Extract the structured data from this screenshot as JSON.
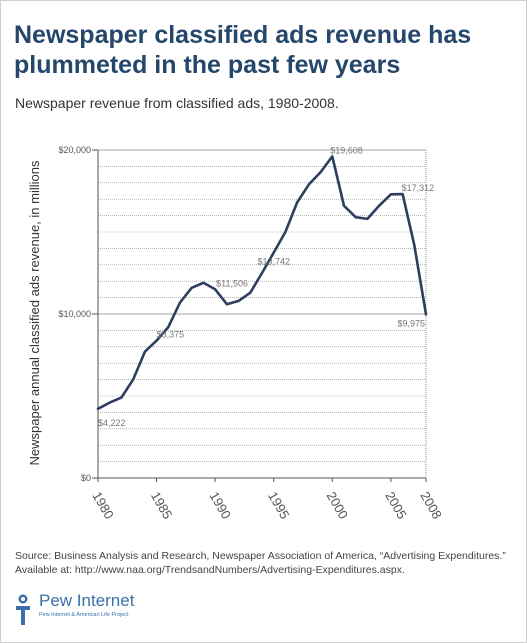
{
  "header": {
    "title_line1": "Newspaper classified ads revenue has",
    "title_line2": "plummeted in the past few years",
    "subtitle": "Newspaper revenue from classified ads, 1980-2008."
  },
  "chart_data": {
    "type": "line",
    "title": "Newspaper classified ads revenue has plummeted in the past few years",
    "subtitle": "Newspaper revenue from classified ads, 1980-2008.",
    "ylabel": "Newspaper annual classified ads revenue, in millions",
    "xlabel": "",
    "ylim": [
      0,
      20000
    ],
    "xlim": [
      1980,
      2008
    ],
    "y_ticks": [
      {
        "value": 0,
        "label": "$0"
      },
      {
        "value": 10000,
        "label": "$10,000"
      },
      {
        "value": 20000,
        "label": "$20,000"
      }
    ],
    "x_ticks": [
      {
        "value": 1980,
        "label": "1980"
      },
      {
        "value": 1985,
        "label": "1985"
      },
      {
        "value": 1990,
        "label": "1990"
      },
      {
        "value": 1995,
        "label": "1995"
      },
      {
        "value": 2000,
        "label": "2000"
      },
      {
        "value": 2005,
        "label": "2005"
      },
      {
        "value": 2008,
        "label": "2008"
      }
    ],
    "grid": "horizontal",
    "series": [
      {
        "color": "#2d3e5f",
        "x": [
          1980,
          1981,
          1982,
          1983,
          1984,
          1985,
          1986,
          1987,
          1988,
          1989,
          1990,
          1991,
          1992,
          1993,
          1994,
          1995,
          1996,
          1997,
          1998,
          1999,
          2000,
          2001,
          2002,
          2003,
          2004,
          2005,
          2006,
          2007,
          2008
        ],
        "values": [
          4222,
          4600,
          4900,
          6000,
          7700,
          8375,
          9200,
          10700,
          11600,
          11900,
          11506,
          10600,
          10800,
          11300,
          12500,
          13742,
          15000,
          16800,
          17900,
          18650,
          19608,
          16600,
          15900,
          15800,
          16600,
          17300,
          17312,
          14200,
          9975
        ]
      }
    ],
    "annotations": [
      {
        "x": 1980,
        "value": 4222,
        "label": "$4,222"
      },
      {
        "x": 1985,
        "value": 8375,
        "label": "$8,375"
      },
      {
        "x": 1990,
        "value": 11506,
        "label": "$11,506"
      },
      {
        "x": 1995,
        "value": 13742,
        "label": "$13,742"
      },
      {
        "x": 2000,
        "value": 19608,
        "label": "$19,608"
      },
      {
        "x": 2006,
        "value": 17312,
        "label": "$17,312"
      },
      {
        "x": 2008,
        "value": 9975,
        "label": "$9,975"
      }
    ]
  },
  "footer": {
    "source_line1": "Source: Business Analysis and Research, Newspaper Association of America, “Advertising Expenditures.”",
    "source_line2": "Available at: http://www.naa.org/TrendsandNumbers/Advertising-Expenditures.aspx.",
    "logo_name": "Pew Internet",
    "logo_tagline": "Pew Internet & American Life Project"
  }
}
